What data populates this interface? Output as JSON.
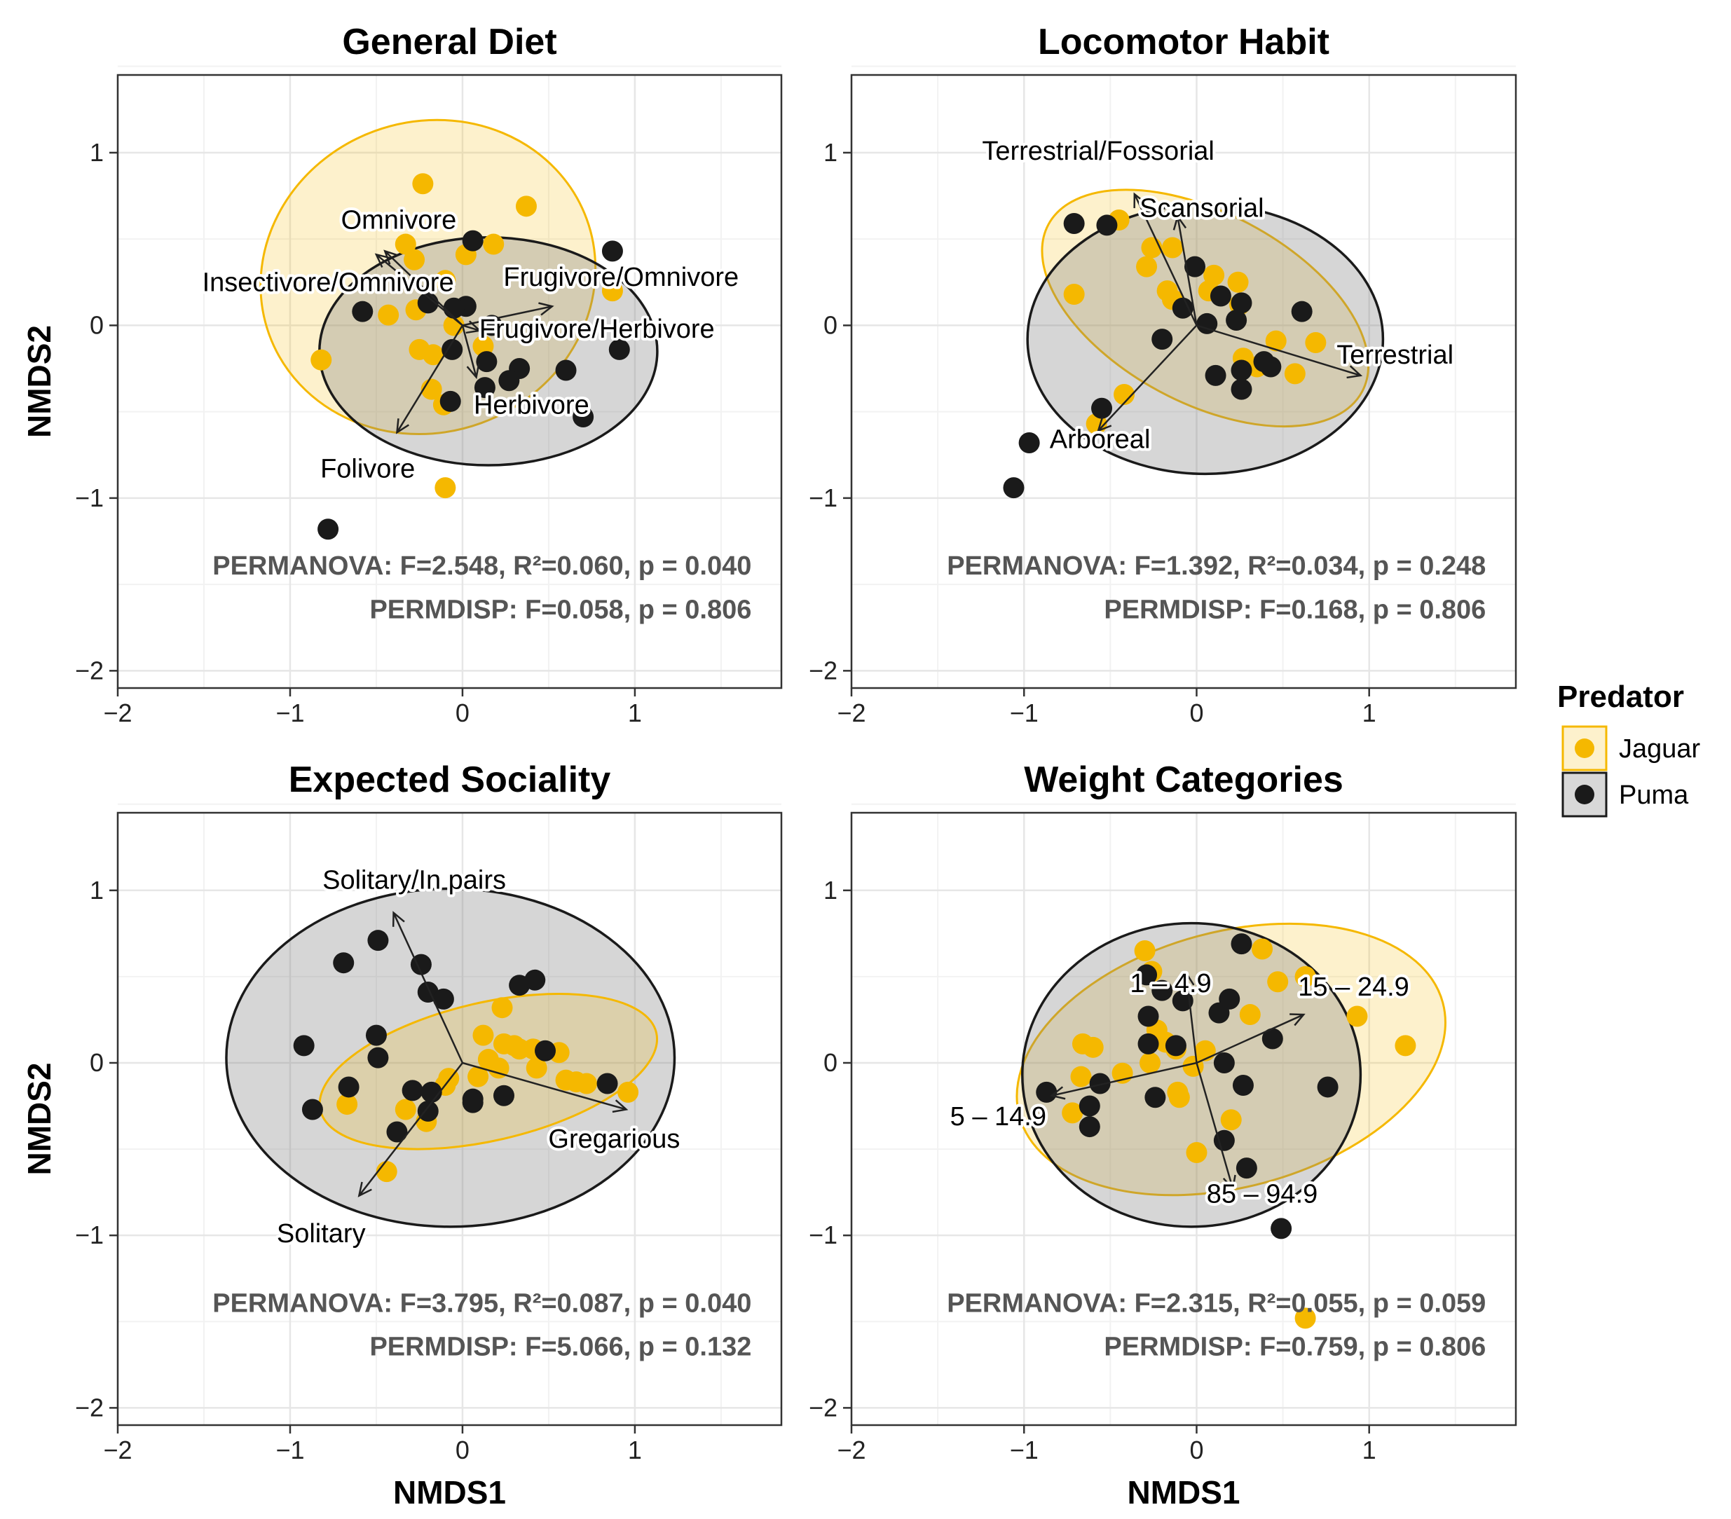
{
  "chart_data": [
    {
      "type": "scatter",
      "title": "General Diet",
      "xlabel": "",
      "ylabel": "NMDS2",
      "xlim": [
        -2,
        1.85
      ],
      "ylim": [
        -2.1,
        1.45
      ],
      "xticks": [
        -2,
        -1,
        0,
        1
      ],
      "yticks": [
        -2,
        -1,
        0,
        1
      ],
      "xtick_labels": [
        "−2",
        "−1",
        "0",
        "1"
      ],
      "ytick_labels": [
        "−2",
        "−1",
        "0",
        "1"
      ],
      "series": [
        {
          "name": "Jaguar",
          "color": "#F5B800",
          "points": [
            [
              -0.23,
              0.82
            ],
            [
              0.37,
              0.69
            ],
            [
              -0.33,
              0.47
            ],
            [
              0.18,
              0.47
            ],
            [
              -0.28,
              0.38
            ],
            [
              0.02,
              0.41
            ],
            [
              -0.1,
              0.26
            ],
            [
              -0.27,
              0.09
            ],
            [
              -0.43,
              0.06
            ],
            [
              -0.25,
              -0.14
            ],
            [
              -0.17,
              -0.17
            ],
            [
              0.12,
              -0.12
            ],
            [
              -0.82,
              -0.2
            ],
            [
              -0.11,
              -0.46
            ],
            [
              -0.18,
              -0.37
            ],
            [
              -0.1,
              -0.94
            ],
            [
              -0.05,
              0.0
            ],
            [
              0.87,
              0.2
            ]
          ]
        },
        {
          "name": "Puma",
          "color": "#1A1A1A",
          "points": [
            [
              0.06,
              0.49
            ],
            [
              0.87,
              0.43
            ],
            [
              -0.58,
              0.08
            ],
            [
              -0.2,
              0.13
            ],
            [
              0.02,
              0.11
            ],
            [
              -0.05,
              0.1
            ],
            [
              0.17,
              0.0
            ],
            [
              0.6,
              -0.26
            ],
            [
              -0.06,
              -0.14
            ],
            [
              0.91,
              -0.14
            ],
            [
              0.14,
              -0.21
            ],
            [
              0.33,
              -0.25
            ],
            [
              0.27,
              -0.32
            ],
            [
              0.13,
              -0.36
            ],
            [
              -0.07,
              -0.44
            ],
            [
              0.7,
              -0.53
            ],
            [
              -0.78,
              -1.18
            ]
          ]
        }
      ],
      "ellipses": [
        {
          "group": "Jaguar",
          "cx": -0.2,
          "cy": 0.28,
          "rx": 0.98,
          "ry": 0.9,
          "angle": 20
        },
        {
          "group": "Puma",
          "cx": 0.15,
          "cy": -0.15,
          "rx": 0.98,
          "ry": 0.66,
          "angle": 0
        }
      ],
      "vectors": [
        {
          "label": "Omnivore",
          "x": -0.45,
          "y": 0.43,
          "label_x": -0.37,
          "label_y": 0.6
        },
        {
          "label": "Insectivore/Omnivore",
          "x": -0.5,
          "y": 0.41,
          "label_x": -0.78,
          "label_y": 0.24
        },
        {
          "label": "Frugivore/Omnivore",
          "x": 0.52,
          "y": 0.11,
          "label_x": 0.92,
          "label_y": 0.27
        },
        {
          "label": "Frugivore/Herbivore",
          "x": 0.1,
          "y": -0.03,
          "label_x": 0.78,
          "label_y": -0.03
        },
        {
          "label": "Herbivore",
          "x": 0.08,
          "y": -0.3,
          "label_x": 0.4,
          "label_y": -0.47
        },
        {
          "label": "Folivore",
          "x": -0.38,
          "y": -0.62,
          "label_x": -0.55,
          "label_y": -0.84
        }
      ],
      "annotations": [
        {
          "text": "PERMANOVA: F=2.548, R²=0.060, p = 0.040"
        },
        {
          "text": "PERMDISP: F=0.058, p = 0.806"
        }
      ]
    },
    {
      "type": "scatter",
      "title": "Locomotor Habit",
      "xlabel": "",
      "ylabel": "",
      "xlim": [
        -2,
        1.85
      ],
      "ylim": [
        -2.1,
        1.45
      ],
      "xticks": [
        -2,
        -1,
        0,
        1
      ],
      "yticks": [
        -2,
        -1,
        0,
        1
      ],
      "xtick_labels": [
        "−2",
        "−1",
        "0",
        "1"
      ],
      "ytick_labels": [
        "−2",
        "−1",
        "0",
        "1"
      ],
      "series": [
        {
          "name": "Jaguar",
          "color": "#F5B800",
          "points": [
            [
              -0.45,
              0.61
            ],
            [
              -0.26,
              0.45
            ],
            [
              -0.14,
              0.45
            ],
            [
              -0.29,
              0.34
            ],
            [
              -0.71,
              0.18
            ],
            [
              0.1,
              0.29
            ],
            [
              0.24,
              0.25
            ],
            [
              -0.17,
              0.2
            ],
            [
              0.07,
              0.2
            ],
            [
              -0.14,
              0.15
            ],
            [
              0.25,
              0.12
            ],
            [
              0.46,
              -0.09
            ],
            [
              0.69,
              -0.1
            ],
            [
              0.27,
              -0.19
            ],
            [
              0.35,
              -0.24
            ],
            [
              0.57,
              -0.28
            ],
            [
              -0.42,
              -0.4
            ],
            [
              -0.58,
              -0.57
            ]
          ]
        },
        {
          "name": "Puma",
          "color": "#1A1A1A",
          "points": [
            [
              -0.71,
              0.59
            ],
            [
              -0.52,
              0.58
            ],
            [
              -0.01,
              0.34
            ],
            [
              0.14,
              0.17
            ],
            [
              0.26,
              0.13
            ],
            [
              0.61,
              0.08
            ],
            [
              -0.08,
              0.1
            ],
            [
              0.06,
              0.01
            ],
            [
              0.23,
              0.03
            ],
            [
              -0.2,
              -0.08
            ],
            [
              0.39,
              -0.21
            ],
            [
              0.43,
              -0.24
            ],
            [
              0.26,
              -0.26
            ],
            [
              0.11,
              -0.29
            ],
            [
              0.26,
              -0.37
            ],
            [
              -0.55,
              -0.48
            ],
            [
              -0.97,
              -0.68
            ],
            [
              -1.06,
              -0.94
            ]
          ]
        }
      ],
      "ellipses": [
        {
          "group": "Jaguar",
          "cx": 0.05,
          "cy": 0.1,
          "rx": 1.03,
          "ry": 0.55,
          "angle": -28
        },
        {
          "group": "Puma",
          "cx": 0.05,
          "cy": -0.08,
          "rx": 1.03,
          "ry": 0.78,
          "angle": 0
        }
      ],
      "vectors": [
        {
          "label": "Terrestrial/Fossorial",
          "x": -0.36,
          "y": 0.76,
          "label_x": -0.57,
          "label_y": 1.0
        },
        {
          "label": "Scansorial",
          "x": -0.11,
          "y": 0.63,
          "label_x": 0.03,
          "label_y": 0.67
        },
        {
          "label": "Terrestrial",
          "x": 0.95,
          "y": -0.29,
          "label_x": 1.15,
          "label_y": -0.18
        },
        {
          "label": "Arboreal",
          "x": -0.57,
          "y": -0.61,
          "label_x": -0.56,
          "label_y": -0.67
        }
      ],
      "annotations": [
        {
          "text": "PERMANOVA: F=1.392, R²=0.034, p = 0.248"
        },
        {
          "text": "PERMDISP: F=0.168, p = 0.806"
        }
      ]
    },
    {
      "type": "scatter",
      "title": "Expected Sociality",
      "xlabel": "NMDS1",
      "ylabel": "NMDS2",
      "xlim": [
        -2,
        1.85
      ],
      "ylim": [
        -2.1,
        1.45
      ],
      "xticks": [
        -2,
        -1,
        0,
        1
      ],
      "yticks": [
        -2,
        -1,
        0,
        1
      ],
      "xtick_labels": [
        "−2",
        "−1",
        "0",
        "1"
      ],
      "ytick_labels": [
        "−2",
        "−1",
        "0",
        "1"
      ],
      "series": [
        {
          "name": "Jaguar",
          "color": "#F5B800",
          "points": [
            [
              0.23,
              0.32
            ],
            [
              0.12,
              0.16
            ],
            [
              0.24,
              0.11
            ],
            [
              0.3,
              0.1
            ],
            [
              0.33,
              0.08
            ],
            [
              0.41,
              0.08
            ],
            [
              0.56,
              0.06
            ],
            [
              0.15,
              0.02
            ],
            [
              0.43,
              -0.03
            ],
            [
              0.21,
              -0.03
            ],
            [
              0.09,
              -0.08
            ],
            [
              0.6,
              -0.1
            ],
            [
              0.66,
              -0.11
            ],
            [
              0.72,
              -0.12
            ],
            [
              -0.08,
              -0.09
            ],
            [
              -0.1,
              -0.13
            ],
            [
              0.96,
              -0.17
            ],
            [
              -0.67,
              -0.24
            ],
            [
              -0.33,
              -0.27
            ],
            [
              -0.21,
              -0.34
            ],
            [
              -0.44,
              -0.63
            ]
          ]
        },
        {
          "name": "Puma",
          "color": "#1A1A1A",
          "points": [
            [
              -0.49,
              0.71
            ],
            [
              -0.69,
              0.58
            ],
            [
              -0.24,
              0.57
            ],
            [
              0.33,
              0.45
            ],
            [
              0.42,
              0.48
            ],
            [
              -0.2,
              0.41
            ],
            [
              -0.11,
              0.37
            ],
            [
              -0.5,
              0.16
            ],
            [
              -0.92,
              0.1
            ],
            [
              0.48,
              0.07
            ],
            [
              -0.49,
              0.03
            ],
            [
              -0.66,
              -0.14
            ],
            [
              -0.29,
              -0.16
            ],
            [
              -0.18,
              -0.17
            ],
            [
              0.24,
              -0.19
            ],
            [
              0.06,
              -0.21
            ],
            [
              0.06,
              -0.23
            ],
            [
              -0.87,
              -0.27
            ],
            [
              -0.2,
              -0.28
            ],
            [
              0.84,
              -0.12
            ],
            [
              -0.38,
              -0.4
            ]
          ]
        }
      ],
      "ellipses": [
        {
          "group": "Puma",
          "cx": -0.07,
          "cy": 0.03,
          "rx": 1.3,
          "ry": 0.98,
          "angle": 0
        },
        {
          "group": "Jaguar",
          "cx": 0.15,
          "cy": -0.05,
          "rx": 1.0,
          "ry": 0.4,
          "angle": 13
        }
      ],
      "vectors": [
        {
          "label": "Solitary/In pairs",
          "x": -0.4,
          "y": 0.87,
          "label_x": -0.28,
          "label_y": 1.05
        },
        {
          "label": "Gregarious",
          "x": 0.95,
          "y": -0.27,
          "label_x": 0.88,
          "label_y": -0.45
        },
        {
          "label": "Solitary",
          "x": -0.6,
          "y": -0.77,
          "label_x": -0.82,
          "label_y": -1.0
        }
      ],
      "annotations": [
        {
          "text": "PERMANOVA: F=3.795, R²=0.087, p = 0.040"
        },
        {
          "text": "PERMDISP: F=5.066, p = 0.132"
        }
      ]
    },
    {
      "type": "scatter",
      "title": "Weight Categories",
      "xlabel": "NMDS1",
      "ylabel": "",
      "xlim": [
        -2,
        1.85
      ],
      "ylim": [
        -2.1,
        1.45
      ],
      "xticks": [
        -2,
        -1,
        0,
        1
      ],
      "yticks": [
        -2,
        -1,
        0,
        1
      ],
      "xtick_labels": [
        "−2",
        "−1",
        "0",
        "1"
      ],
      "ytick_labels": [
        "−2",
        "−1",
        "0",
        "1"
      ],
      "series": [
        {
          "name": "Jaguar",
          "color": "#F5B800",
          "points": [
            [
              -0.3,
              0.65
            ],
            [
              0.38,
              0.66
            ],
            [
              -0.26,
              0.53
            ],
            [
              0.47,
              0.47
            ],
            [
              0.63,
              0.5
            ],
            [
              0.31,
              0.28
            ],
            [
              0.93,
              0.27
            ],
            [
              1.21,
              0.1
            ],
            [
              -0.23,
              0.19
            ],
            [
              -0.18,
              0.12
            ],
            [
              -0.12,
              0.08
            ],
            [
              -0.27,
              0.0
            ],
            [
              0.05,
              0.07
            ],
            [
              -0.66,
              0.11
            ],
            [
              -0.6,
              0.09
            ],
            [
              -0.67,
              -0.08
            ],
            [
              -0.43,
              -0.06
            ],
            [
              -0.02,
              -0.02
            ],
            [
              -0.1,
              -0.2
            ],
            [
              -0.11,
              -0.17
            ],
            [
              0.2,
              -0.33
            ],
            [
              -0.72,
              -0.29
            ],
            [
              0.0,
              -0.52
            ],
            [
              0.63,
              -1.48
            ]
          ]
        },
        {
          "name": "Puma",
          "color": "#1A1A1A",
          "points": [
            [
              0.26,
              0.69
            ],
            [
              -0.29,
              0.51
            ],
            [
              -0.2,
              0.42
            ],
            [
              -0.08,
              0.36
            ],
            [
              0.19,
              0.37
            ],
            [
              0.13,
              0.29
            ],
            [
              -0.28,
              0.27
            ],
            [
              -0.28,
              0.11
            ],
            [
              -0.12,
              0.1
            ],
            [
              0.16,
              0.0
            ],
            [
              0.27,
              -0.13
            ],
            [
              0.76,
              -0.14
            ],
            [
              0.44,
              0.14
            ],
            [
              -0.56,
              -0.12
            ],
            [
              -0.87,
              -0.17
            ],
            [
              -0.24,
              -0.2
            ],
            [
              -0.62,
              -0.25
            ],
            [
              -0.62,
              -0.37
            ],
            [
              0.16,
              -0.45
            ],
            [
              0.29,
              -0.61
            ],
            [
              0.49,
              -0.96
            ]
          ]
        }
      ],
      "ellipses": [
        {
          "group": "Jaguar",
          "cx": 0.2,
          "cy": 0.02,
          "rx": 1.27,
          "ry": 0.74,
          "angle": 15
        },
        {
          "group": "Puma",
          "cx": -0.03,
          "cy": -0.07,
          "rx": 0.98,
          "ry": 0.88,
          "angle": 0
        }
      ],
      "vectors": [
        {
          "label": "1 – 4.9",
          "x": -0.06,
          "y": 0.52,
          "label_x": -0.15,
          "label_y": 0.45
        },
        {
          "label": "15 – 24.9",
          "x": 0.62,
          "y": 0.28,
          "label_x": 0.91,
          "label_y": 0.43
        },
        {
          "label": "5 – 14.9",
          "x": -0.84,
          "y": -0.19,
          "label_x": -1.15,
          "label_y": -0.32
        },
        {
          "label": "85 – 94.9",
          "x": 0.21,
          "y": -0.73,
          "label_x": 0.38,
          "label_y": -0.77
        }
      ],
      "annotations": [
        {
          "text": "PERMANOVA: F=2.315, R²=0.055, p = 0.059"
        },
        {
          "text": "PERMDISP: F=0.759, p = 0.806"
        }
      ]
    }
  ],
  "legend": {
    "title": "Predator",
    "position": "right",
    "items": [
      {
        "label": "Jaguar",
        "color": "#F5B800",
        "fill": "#F5B800"
      },
      {
        "label": "Puma",
        "color": "#1A1A1A",
        "fill": "#7F7F7F"
      }
    ]
  }
}
